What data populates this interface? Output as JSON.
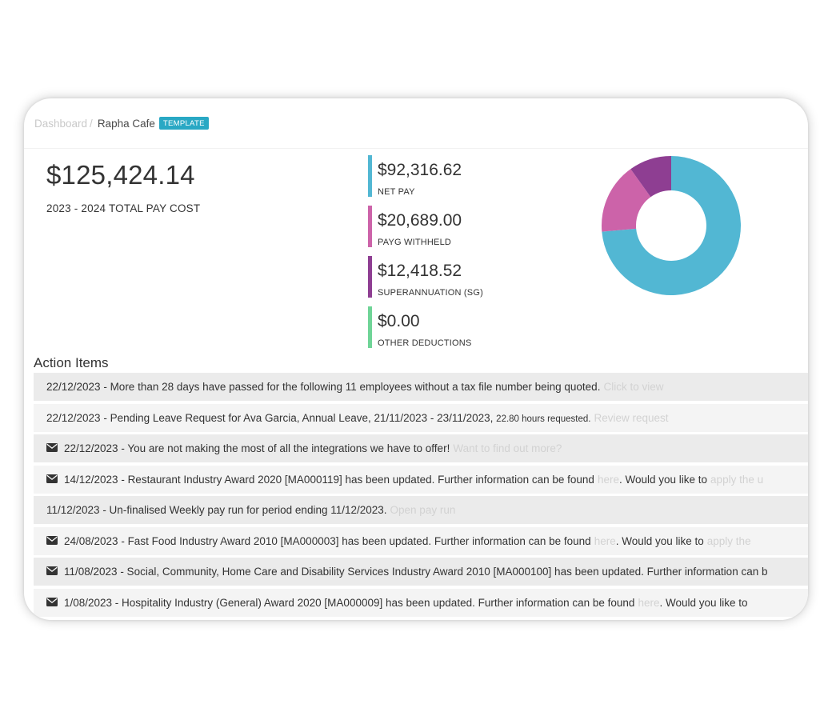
{
  "breadcrumb": {
    "root": "Dashboard",
    "separator": "/",
    "current": "Rapha Cafe",
    "tag": "TEMPLATE"
  },
  "summary": {
    "total_amount": "$125,424.14",
    "total_label": "2023 - 2024 TOTAL PAY COST",
    "metrics": [
      {
        "value": "$92,316.62",
        "label": "NET PAY",
        "color": "#52b7d3",
        "amount": 92316.62
      },
      {
        "value": "$20,689.00",
        "label": "PAYG WITHHELD",
        "color": "#cc63a9",
        "amount": 20689.0
      },
      {
        "value": "$12,418.52",
        "label": "SUPERANNUATION (SG)",
        "color": "#8e3e92",
        "amount": 12418.52
      },
      {
        "value": "$0.00",
        "label": "OTHER DEDUCTIONS",
        "color": "#6fd497",
        "amount": 0
      }
    ]
  },
  "action_items": {
    "title": "Action Items",
    "items": [
      {
        "icon": "",
        "text": "22/12/2023 - More than 28 days have passed for the following 11 employees without a tax file number being quoted.",
        "small": "",
        "link": "Click to view",
        "rest": ""
      },
      {
        "icon": "",
        "text": "22/12/2023 - Pending Leave Request for Ava Garcia, Annual Leave, 21/11/2023 - 23/11/2023, ",
        "small": "22.80 hours requested.",
        "link": "Review request",
        "rest": ""
      },
      {
        "icon": "envelope-icon",
        "text": "22/12/2023 - You are not making the most of all the integrations we have to offer!",
        "small": "",
        "link": "Want to find out more?",
        "rest": ""
      },
      {
        "icon": "envelope-icon",
        "text": "14/12/2023 - Restaurant Industry Award 2020 [MA000119] has been updated. Further information can be found",
        "small": "",
        "link": "here",
        "rest": ". Would you like to",
        "link2": "apply the u"
      },
      {
        "icon": "",
        "text": "11/12/2023 - Un-finalised Weekly pay run for period ending 11/12/2023.",
        "small": "",
        "link": "Open pay run",
        "rest": ""
      },
      {
        "icon": "envelope-icon",
        "text": "24/08/2023 - Fast Food Industry Award 2010 [MA000003] has been updated. Further information can be found",
        "small": "",
        "link": "here",
        "rest": ". Would you like to",
        "link2": "apply the"
      },
      {
        "icon": "envelope-icon",
        "text": "11/08/2023 - Social, Community, Home Care and Disability Services Industry Award 2010 [MA000100] has been updated. Further information can b",
        "small": "",
        "link": "",
        "rest": ""
      },
      {
        "icon": "envelope-icon",
        "text": "1/08/2023 - Hospitality Industry (General) Award 2020 [MA000009] has been updated. Further information can be found",
        "small": "",
        "link": "here",
        "rest": ". Would you like to"
      }
    ]
  }
}
